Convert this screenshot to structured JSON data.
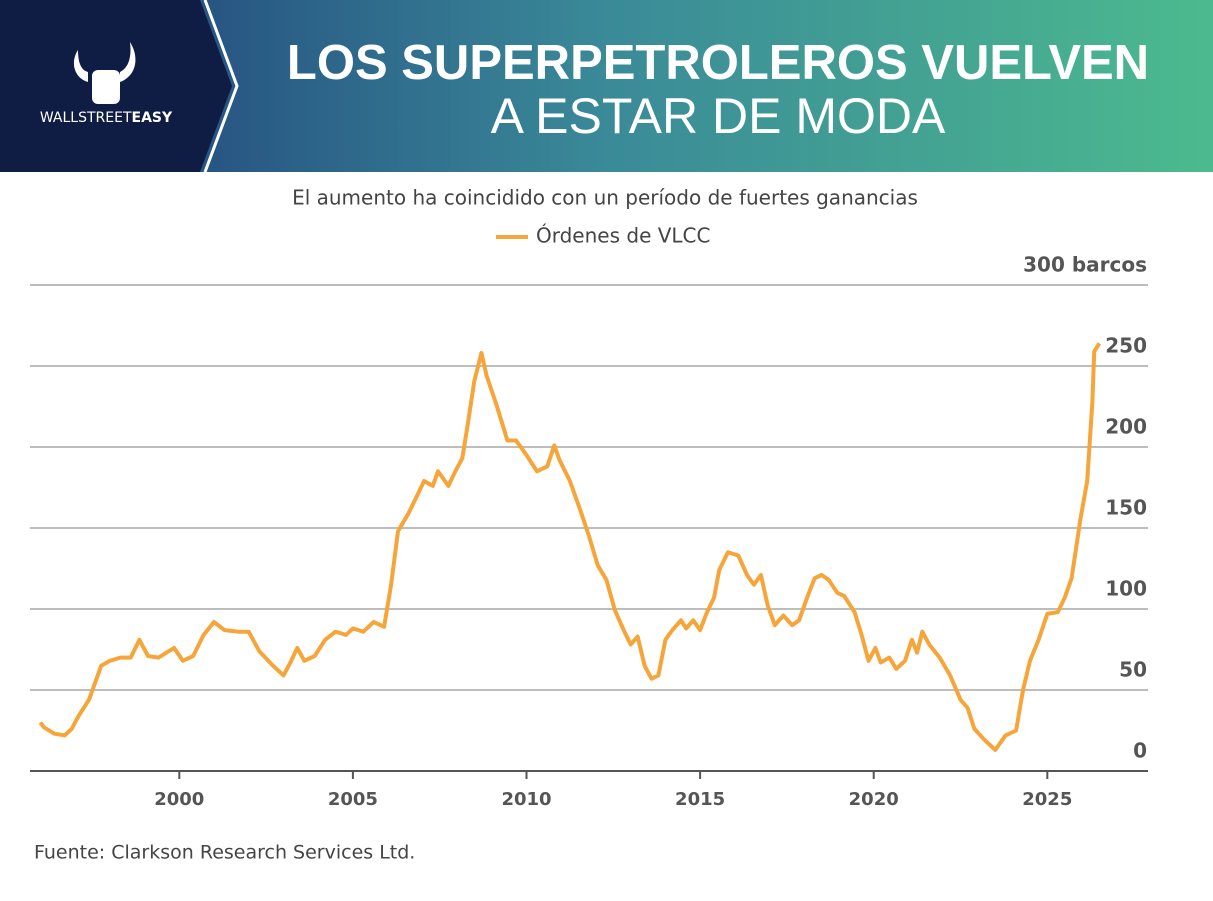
{
  "header": {
    "title_line1": "LOS SUPERPETROLEROS VUELVEN",
    "title_line2": "A ESTAR DE MODA",
    "brand_a": "WALLSTREET",
    "brand_b": "EASY"
  },
  "chart_data": {
    "type": "line",
    "subtitle": "El aumento ha coincidido con un período de fuertes ganancias",
    "source": "Fuente: Clarkson Research Services Ltd.",
    "x": [
      1996.0,
      1996.1,
      1996.4,
      1996.7,
      1996.9,
      1997.1,
      1997.4,
      1997.6,
      1997.75,
      1998.0,
      1998.3,
      1998.6,
      1998.85,
      1999.1,
      1999.4,
      1999.85,
      2000.1,
      2000.4,
      2000.7,
      2001.0,
      2001.3,
      2001.7,
      2002.0,
      2002.3,
      2002.7,
      2003.0,
      2003.2,
      2003.4,
      2003.6,
      2003.9,
      2004.2,
      2004.5,
      2004.8,
      2005.0,
      2005.3,
      2005.6,
      2005.9,
      2006.1,
      2006.3,
      2006.6,
      2006.85,
      2007.05,
      2007.3,
      2007.45,
      2007.75,
      2007.95,
      2008.15,
      2008.3,
      2008.5,
      2008.7,
      2008.85,
      2009.15,
      2009.45,
      2009.7,
      2010.0,
      2010.3,
      2010.6,
      2010.8,
      2010.95,
      2011.25,
      2011.55,
      2011.8,
      2012.05,
      2012.3,
      2012.55,
      2012.8,
      2013.0,
      2013.2,
      2013.4,
      2013.6,
      2013.8,
      2014.0,
      2014.2,
      2014.45,
      2014.6,
      2014.8,
      2015.0,
      2015.2,
      2015.4,
      2015.55,
      2015.8,
      2016.1,
      2016.35,
      2016.55,
      2016.75,
      2016.95,
      2017.15,
      2017.4,
      2017.65,
      2017.85,
      2018.1,
      2018.3,
      2018.5,
      2018.7,
      2018.95,
      2019.15,
      2019.45,
      2019.65,
      2019.85,
      2020.05,
      2020.2,
      2020.45,
      2020.65,
      2020.9,
      2021.1,
      2021.25,
      2021.4,
      2021.6,
      2021.9,
      2022.2,
      2022.5,
      2022.7,
      2022.9,
      2023.2,
      2023.5,
      2023.8,
      2024.1,
      2024.3,
      2024.5,
      2024.75,
      2025.0,
      2025.3,
      2025.5,
      2025.7,
      2025.95,
      2026.15,
      2026.3,
      2026.35,
      2026.5
    ],
    "series": [
      {
        "name": "Órdenes de VLCC",
        "color": "#f5a53a",
        "values": [
          30,
          27,
          23,
          22,
          26,
          34,
          44,
          56,
          65,
          68,
          70,
          70,
          81,
          71,
          70,
          76,
          68,
          71,
          84,
          92,
          87,
          86,
          86,
          74,
          65,
          59,
          67,
          76,
          68,
          71,
          81,
          86,
          84,
          88,
          86,
          92,
          89,
          115,
          148,
          159,
          170,
          179,
          176,
          185,
          176,
          185,
          193,
          213,
          241,
          258,
          244,
          225,
          204,
          204,
          195,
          185,
          188,
          201,
          192,
          179,
          161,
          145,
          127,
          118,
          99,
          87,
          78,
          83,
          65,
          57,
          59,
          81,
          87,
          93,
          88,
          93,
          87,
          98,
          107,
          124,
          135,
          133,
          121,
          115,
          121,
          102,
          90,
          96,
          90,
          93,
          108,
          119,
          121,
          118,
          110,
          108,
          98,
          84,
          68,
          76,
          67,
          70,
          63,
          68,
          81,
          73,
          86,
          78,
          70,
          59,
          44,
          39,
          26,
          19,
          13,
          22,
          25,
          50,
          68,
          81,
          97,
          98,
          107,
          119,
          155,
          179,
          228,
          259,
          264
        ]
      }
    ],
    "xlim": [
      1995.7,
      2027.9
    ],
    "ylim": [
      0,
      300
    ],
    "xticks": [
      2000,
      2005,
      2010,
      2015,
      2020,
      2025
    ],
    "yticks": [
      0,
      50,
      100,
      150,
      200,
      250,
      {
        "value": 300,
        "label": "300 barcos"
      }
    ],
    "grid": true
  }
}
